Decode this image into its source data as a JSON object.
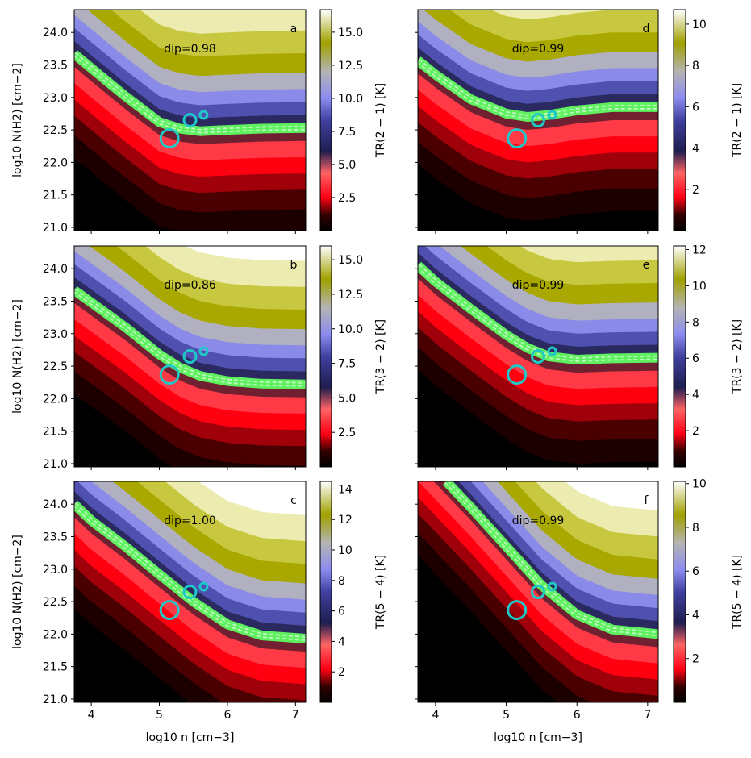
{
  "chart_data": [
    {
      "panel": "a",
      "type": "heatmap",
      "dip_label": "dip=0.98",
      "xlim": [
        3.75,
        7.15
      ],
      "ylim": [
        20.95,
        24.35
      ],
      "xticks": [
        4,
        5,
        6,
        7
      ],
      "yticks": [
        21.0,
        21.5,
        22.0,
        22.5,
        23.0,
        23.5,
        24.0
      ],
      "xlabel": "",
      "ylabel": "log10 N(H2) [cm−2]",
      "colorbar": {
        "label": "TR(2 − 1) [K]",
        "min": 0.0,
        "max": 16.7,
        "ticks": [
          "2.5",
          "5.0",
          "7.5",
          "10.0",
          "12.5",
          "15.0"
        ]
      },
      "band": {
        "x": [
          3.75,
          4.0,
          4.5,
          5.0,
          5.3,
          5.6,
          6.0,
          6.5,
          7.15
        ],
        "y": [
          23.67,
          23.45,
          23.02,
          22.62,
          22.52,
          22.48,
          22.5,
          22.52,
          22.53
        ]
      },
      "circles": [
        {
          "x": 5.15,
          "y": 22.37,
          "size": "large"
        },
        {
          "x": 5.45,
          "y": 22.65,
          "size": "medium"
        },
        {
          "x": 5.65,
          "y": 22.73,
          "size": "small"
        }
      ]
    },
    {
      "panel": "d",
      "type": "heatmap",
      "dip_label": "dip=0.99",
      "xlim": [
        3.75,
        7.15
      ],
      "ylim": [
        20.95,
        24.35
      ],
      "xticks": [
        4,
        5,
        6,
        7
      ],
      "yticks": [
        21.0,
        21.5,
        22.0,
        22.5,
        23.0,
        23.5,
        24.0
      ],
      "xlabel": "",
      "ylabel": "",
      "colorbar": {
        "label": "TR(2 − 1) [K]",
        "min": 0.0,
        "max": 10.7,
        "ticks": [
          "2",
          "4",
          "6",
          "8",
          "10"
        ]
      },
      "band": {
        "x": [
          3.75,
          4.0,
          4.5,
          5.0,
          5.3,
          5.6,
          6.0,
          6.5,
          7.15
        ],
        "y": [
          23.57,
          23.35,
          22.97,
          22.75,
          22.7,
          22.73,
          22.8,
          22.85,
          22.85
        ]
      },
      "circles": [
        {
          "x": 5.15,
          "y": 22.37,
          "size": "large"
        },
        {
          "x": 5.45,
          "y": 22.65,
          "size": "medium"
        },
        {
          "x": 5.65,
          "y": 22.73,
          "size": "small"
        }
      ]
    },
    {
      "panel": "b",
      "type": "heatmap",
      "dip_label": "dip=0.86",
      "xlim": [
        3.75,
        7.15
      ],
      "ylim": [
        20.95,
        24.35
      ],
      "xticks": [
        4,
        5,
        6,
        7
      ],
      "yticks": [
        21.0,
        21.5,
        22.0,
        22.5,
        23.0,
        23.5,
        24.0
      ],
      "xlabel": "",
      "ylabel": "log10 N(H2) [cm−2]",
      "colorbar": {
        "label": "TR(3 − 2) [K]",
        "min": 0.0,
        "max": 16.0,
        "ticks": [
          "2.5",
          "5.0",
          "7.5",
          "10.0",
          "12.5",
          "15.0"
        ]
      },
      "band": {
        "x": [
          3.75,
          4.0,
          4.5,
          5.0,
          5.3,
          5.6,
          6.0,
          6.5,
          7.15
        ],
        "y": [
          23.67,
          23.48,
          23.1,
          22.68,
          22.48,
          22.35,
          22.27,
          22.23,
          22.22
        ]
      },
      "circles": [
        {
          "x": 5.15,
          "y": 22.37,
          "size": "large"
        },
        {
          "x": 5.45,
          "y": 22.65,
          "size": "medium"
        },
        {
          "x": 5.65,
          "y": 22.73,
          "size": "small"
        }
      ]
    },
    {
      "panel": "e",
      "type": "heatmap",
      "dip_label": "dip=0.99",
      "xlim": [
        3.75,
        7.15
      ],
      "ylim": [
        20.95,
        24.35
      ],
      "xticks": [
        4,
        5,
        6,
        7
      ],
      "yticks": [
        21.0,
        21.5,
        22.0,
        22.5,
        23.0,
        23.5,
        24.0
      ],
      "xlabel": "",
      "ylabel": "",
      "colorbar": {
        "label": "TR(3 − 2) [K]",
        "min": 0.0,
        "max": 12.2,
        "ticks": [
          "2",
          "4",
          "6",
          "8",
          "10",
          "12"
        ]
      },
      "band": {
        "x": [
          3.75,
          4.0,
          4.5,
          5.0,
          5.3,
          5.6,
          6.0,
          6.5,
          7.15
        ],
        "y": [
          24.05,
          23.8,
          23.38,
          22.98,
          22.78,
          22.65,
          22.6,
          22.62,
          22.63
        ]
      },
      "circles": [
        {
          "x": 5.15,
          "y": 22.37,
          "size": "large"
        },
        {
          "x": 5.45,
          "y": 22.65,
          "size": "medium"
        },
        {
          "x": 5.65,
          "y": 22.73,
          "size": "small"
        }
      ]
    },
    {
      "panel": "c",
      "type": "heatmap",
      "dip_label": "dip=1.00",
      "xlim": [
        3.75,
        7.15
      ],
      "ylim": [
        20.95,
        24.35
      ],
      "xticks": [
        4,
        5,
        6,
        7
      ],
      "yticks": [
        21.0,
        21.5,
        22.0,
        22.5,
        23.0,
        23.5,
        24.0
      ],
      "xlabel": "log10 n [cm−3]",
      "ylabel": "log10 N(H2) [cm−2]",
      "colorbar": {
        "label": "TR(5 − 4) [K]",
        "min": 0.0,
        "max": 14.5,
        "ticks": [
          "2",
          "4",
          "6",
          "8",
          "10",
          "12",
          "14"
        ]
      },
      "band": {
        "x": [
          3.75,
          4.0,
          4.5,
          5.0,
          5.5,
          6.0,
          6.5,
          7.15
        ],
        "y": [
          24.0,
          23.75,
          23.35,
          22.92,
          22.5,
          22.15,
          21.98,
          21.93
        ]
      },
      "circles": [
        {
          "x": 5.15,
          "y": 22.37,
          "size": "large"
        },
        {
          "x": 5.45,
          "y": 22.65,
          "size": "medium"
        },
        {
          "x": 5.65,
          "y": 22.73,
          "size": "small"
        }
      ]
    },
    {
      "panel": "f",
      "type": "heatmap",
      "dip_label": "dip=0.99",
      "xlim": [
        3.75,
        7.15
      ],
      "ylim": [
        20.95,
        24.35
      ],
      "xticks": [
        4,
        5,
        6,
        7
      ],
      "yticks": [
        21.0,
        21.5,
        22.0,
        22.5,
        23.0,
        23.5,
        24.0
      ],
      "xlabel": "log10 n [cm−3]",
      "ylabel": "",
      "colorbar": {
        "label": "TR(5 − 4) [K]",
        "min": 0.0,
        "max": 10.1,
        "ticks": [
          "2",
          "4",
          "6",
          "8",
          "10"
        ]
      },
      "band": {
        "x": [
          4.15,
          4.5,
          5.0,
          5.5,
          6.0,
          6.5,
          7.15
        ],
        "y": [
          24.35,
          23.95,
          23.35,
          22.75,
          22.3,
          22.07,
          22.0
        ]
      },
      "circles": [
        {
          "x": 5.15,
          "y": 22.37,
          "size": "large"
        },
        {
          "x": 5.45,
          "y": 22.65,
          "size": "medium"
        },
        {
          "x": 5.65,
          "y": 22.73,
          "size": "small"
        }
      ]
    }
  ]
}
